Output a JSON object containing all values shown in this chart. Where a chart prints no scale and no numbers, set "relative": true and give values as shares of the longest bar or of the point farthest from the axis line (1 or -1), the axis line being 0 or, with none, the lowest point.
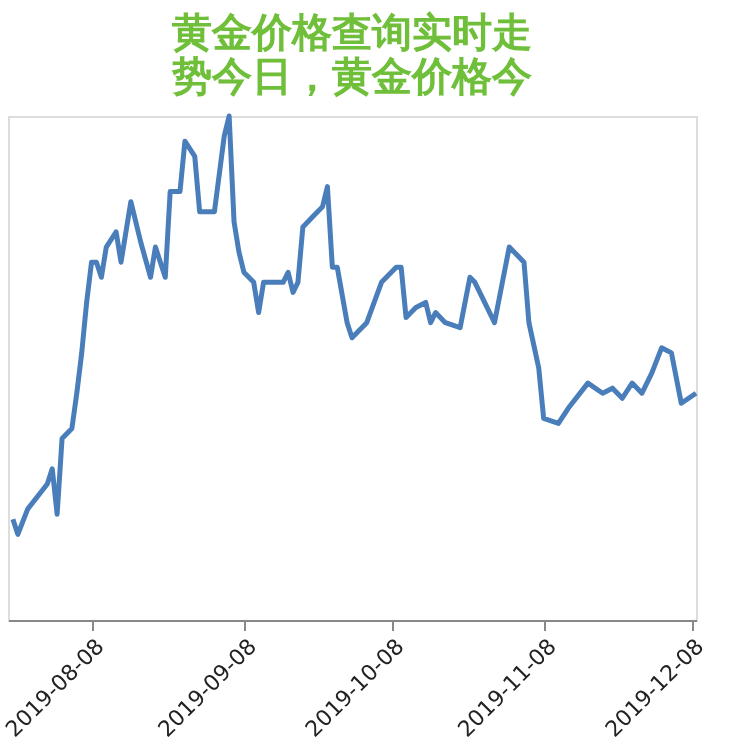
{
  "chart_data": {
    "type": "line",
    "title": "黄金价格查询实时走势今日，黄金价格今",
    "relative": true,
    "grid": false,
    "marker": "none",
    "line_style": "solid",
    "xlim": [
      "2019-07-22",
      "2019-12-09"
    ],
    "xticks": [
      "2019-08-08",
      "2019-09-08",
      "2019-10-08",
      "2019-11-08",
      "2019-12-08"
    ],
    "x": [
      "2019-07-23",
      "2019-07-24",
      "2019-07-26",
      "2019-07-30",
      "2019-07-31",
      "2019-08-01",
      "2019-08-02",
      "2019-08-04",
      "2019-08-05",
      "2019-08-06",
      "2019-08-07",
      "2019-08-08",
      "2019-08-09",
      "2019-08-10",
      "2019-08-11",
      "2019-08-13",
      "2019-08-14",
      "2019-08-16",
      "2019-08-18",
      "2019-08-20",
      "2019-08-21",
      "2019-08-23",
      "2019-08-24",
      "2019-08-26",
      "2019-08-27",
      "2019-08-29",
      "2019-08-30",
      "2019-09-02",
      "2019-09-04",
      "2019-09-05",
      "2019-09-06",
      "2019-09-07",
      "2019-09-08",
      "2019-09-10",
      "2019-09-11",
      "2019-09-12",
      "2019-09-16",
      "2019-09-17",
      "2019-09-18",
      "2019-09-19",
      "2019-09-20",
      "2019-09-22",
      "2019-09-24",
      "2019-09-25",
      "2019-09-26",
      "2019-09-27",
      "2019-09-29",
      "2019-09-30",
      "2019-10-03",
      "2019-10-06",
      "2019-10-09",
      "2019-10-10",
      "2019-10-11",
      "2019-10-13",
      "2019-10-15",
      "2019-10-16",
      "2019-10-17",
      "2019-10-19",
      "2019-10-22",
      "2019-10-24",
      "2019-10-25",
      "2019-10-29",
      "2019-11-01",
      "2019-11-04",
      "2019-11-05",
      "2019-11-07",
      "2019-11-08",
      "2019-11-11",
      "2019-11-13",
      "2019-11-17",
      "2019-11-20",
      "2019-11-22",
      "2019-11-24",
      "2019-11-26",
      "2019-11-28",
      "2019-11-30",
      "2019-12-02",
      "2019-12-04",
      "2019-12-06",
      "2019-12-09"
    ],
    "series": [
      {
        "color": "#4a7ebb",
        "values": [
          0.2,
          0.17,
          0.22,
          0.27,
          0.3,
          0.21,
          0.36,
          0.38,
          0.45,
          0.53,
          0.63,
          0.71,
          0.71,
          0.68,
          0.74,
          0.77,
          0.71,
          0.83,
          0.75,
          0.68,
          0.74,
          0.68,
          0.85,
          0.85,
          0.95,
          0.92,
          0.81,
          0.81,
          0.96,
          1,
          0.79,
          0.73,
          0.69,
          0.67,
          0.61,
          0.67,
          0.67,
          0.69,
          0.65,
          0.67,
          0.78,
          0.8,
          0.82,
          0.86,
          0.7,
          0.7,
          0.59,
          0.56,
          0.59,
          0.67,
          0.7,
          0.7,
          0.6,
          0.62,
          0.63,
          0.59,
          0.61,
          0.59,
          0.58,
          0.68,
          0.67,
          0.59,
          0.74,
          0.71,
          0.59,
          0.5,
          0.4,
          0.39,
          0.42,
          0.47,
          0.45,
          0.46,
          0.44,
          0.47,
          0.45,
          0.49,
          0.54,
          0.53,
          0.43,
          0.45
        ]
      }
    ]
  }
}
